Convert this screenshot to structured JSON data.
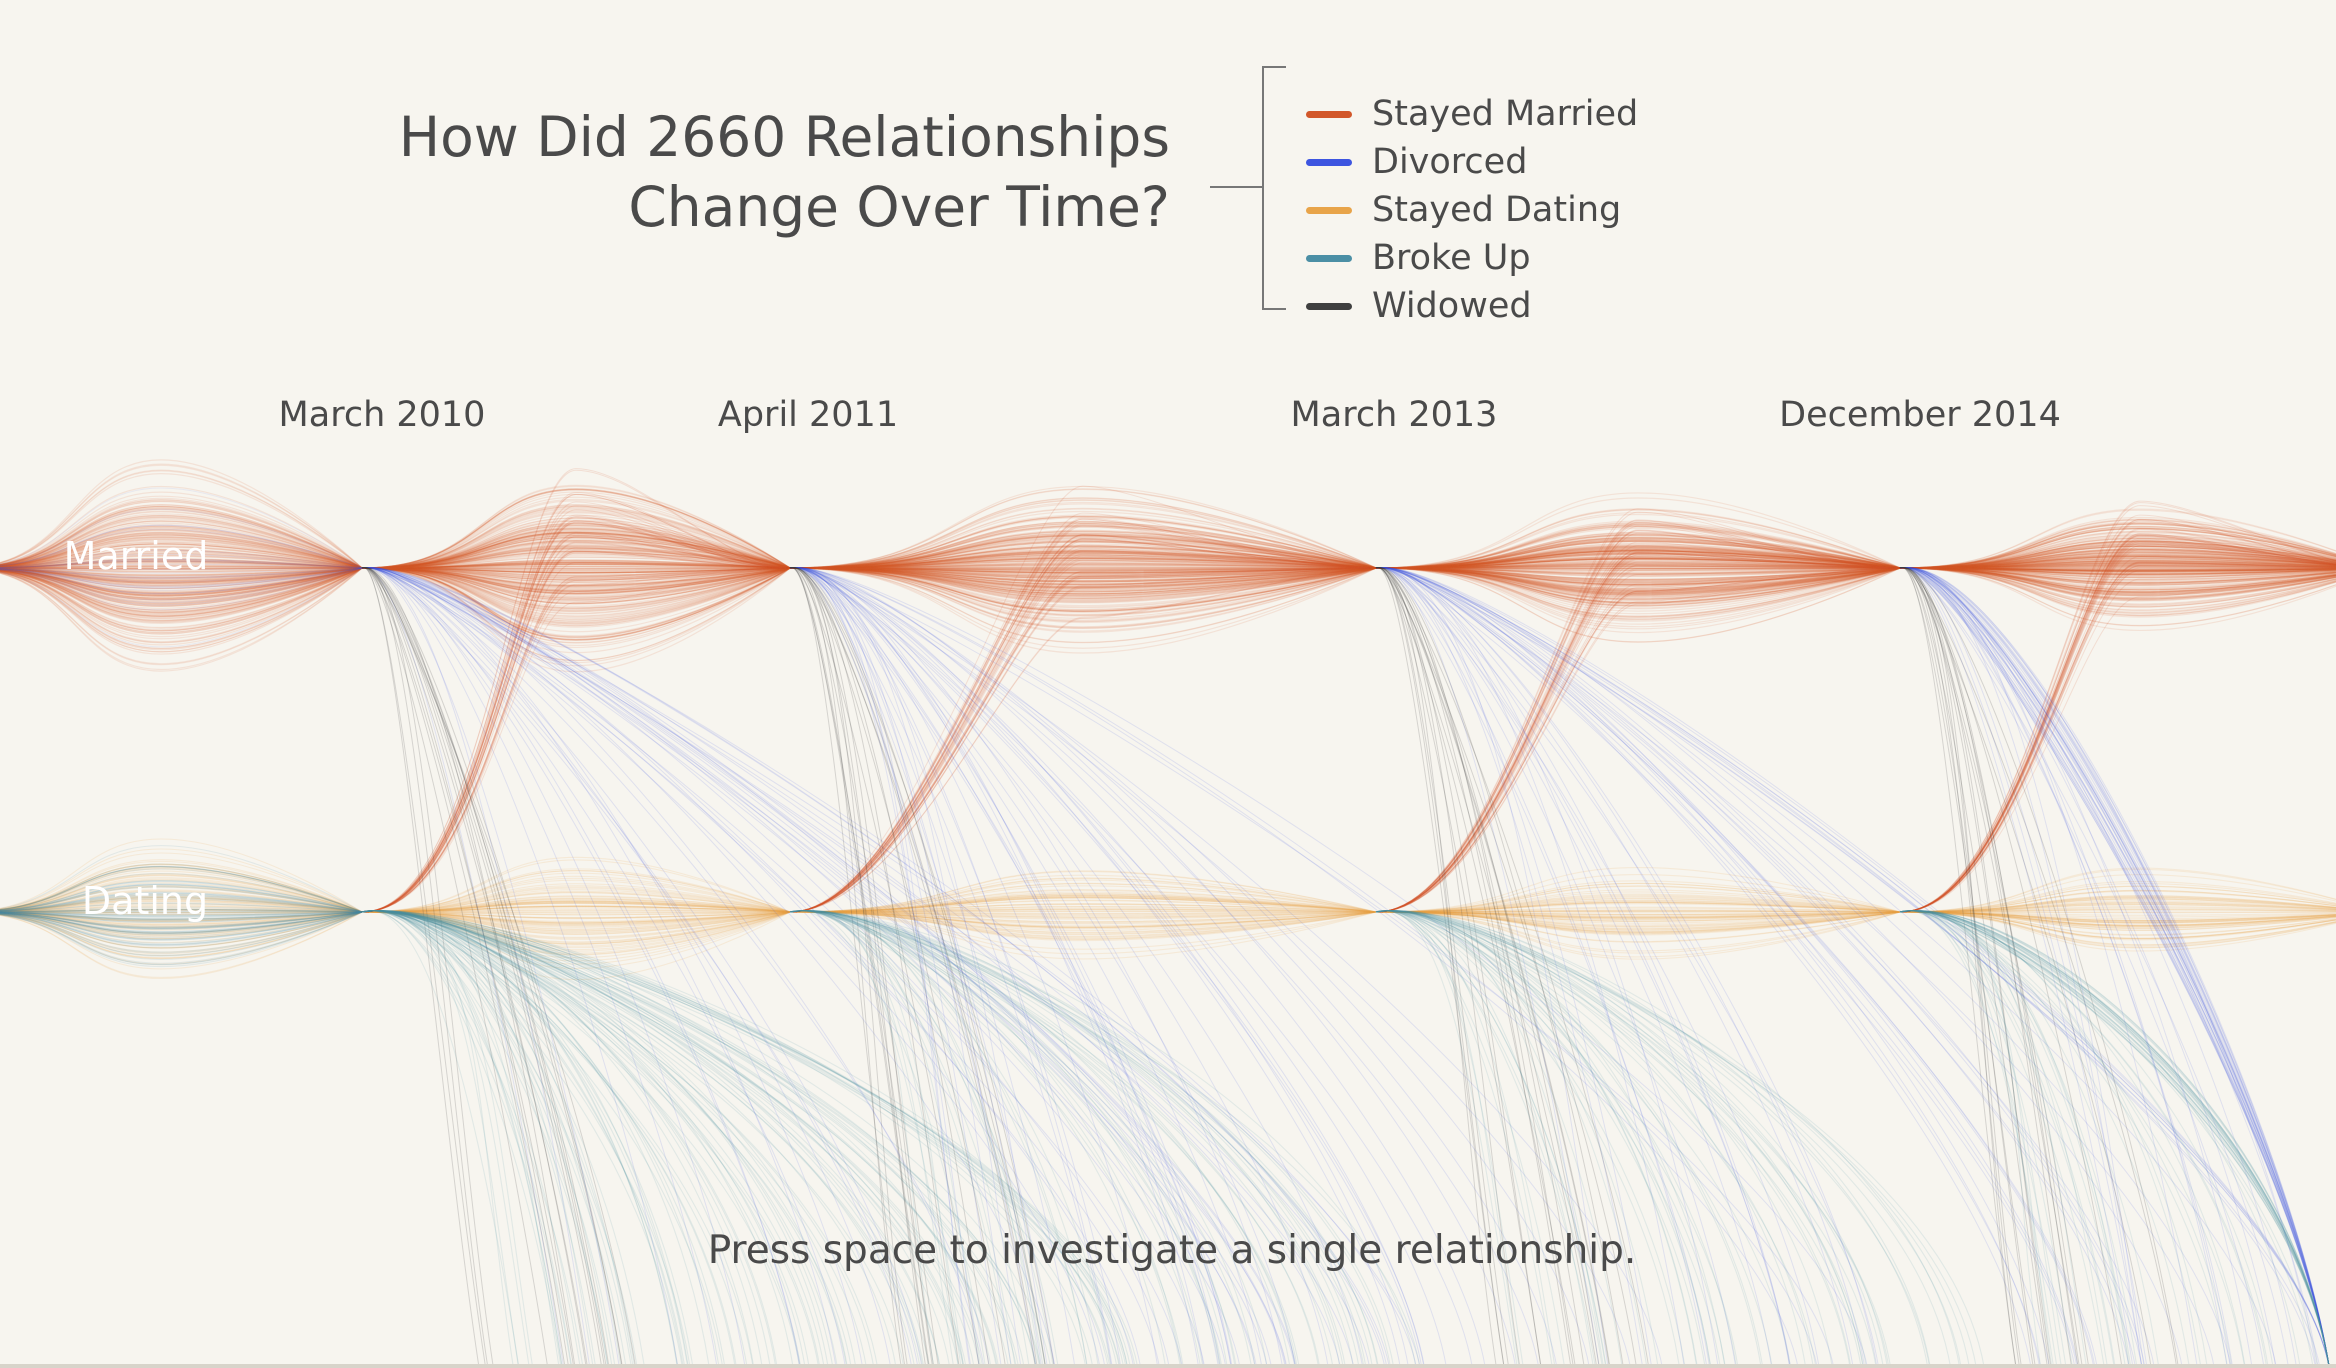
{
  "title_lines": [
    "How Did 2660 Relationships",
    "Change Over Time?"
  ],
  "legend": [
    {
      "label": "Stayed Married",
      "color": "#d2572a"
    },
    {
      "label": "Divorced",
      "color": "#3d55e0"
    },
    {
      "label": "Stayed Dating",
      "color": "#e8a449"
    },
    {
      "label": "Broke Up",
      "color": "#4b8fa5"
    },
    {
      "label": "Widowed",
      "color": "#3f3f3f"
    }
  ],
  "time_points": [
    "March 2010",
    "April 2011",
    "March 2013",
    "December 2014"
  ],
  "states": [
    "Married",
    "Dating"
  ],
  "hint": "Press space to investigate a single relationship.",
  "chart_data": {
    "type": "line",
    "title": "How Did 2660 Relationships Change Over Time?",
    "x": [
      "March 2010",
      "April 2011",
      "March 2013",
      "December 2014"
    ],
    "categories": [
      "Married",
      "Dating"
    ],
    "series": [
      {
        "name": "Stayed Married",
        "color": "#d2572a"
      },
      {
        "name": "Divorced",
        "color": "#3d55e0"
      },
      {
        "name": "Stayed Dating",
        "color": "#e8a449"
      },
      {
        "name": "Broke Up",
        "color": "#4b8fa5"
      },
      {
        "name": "Widowed",
        "color": "#3f3f3f"
      }
    ],
    "legend": "top-right",
    "grid": false
  }
}
